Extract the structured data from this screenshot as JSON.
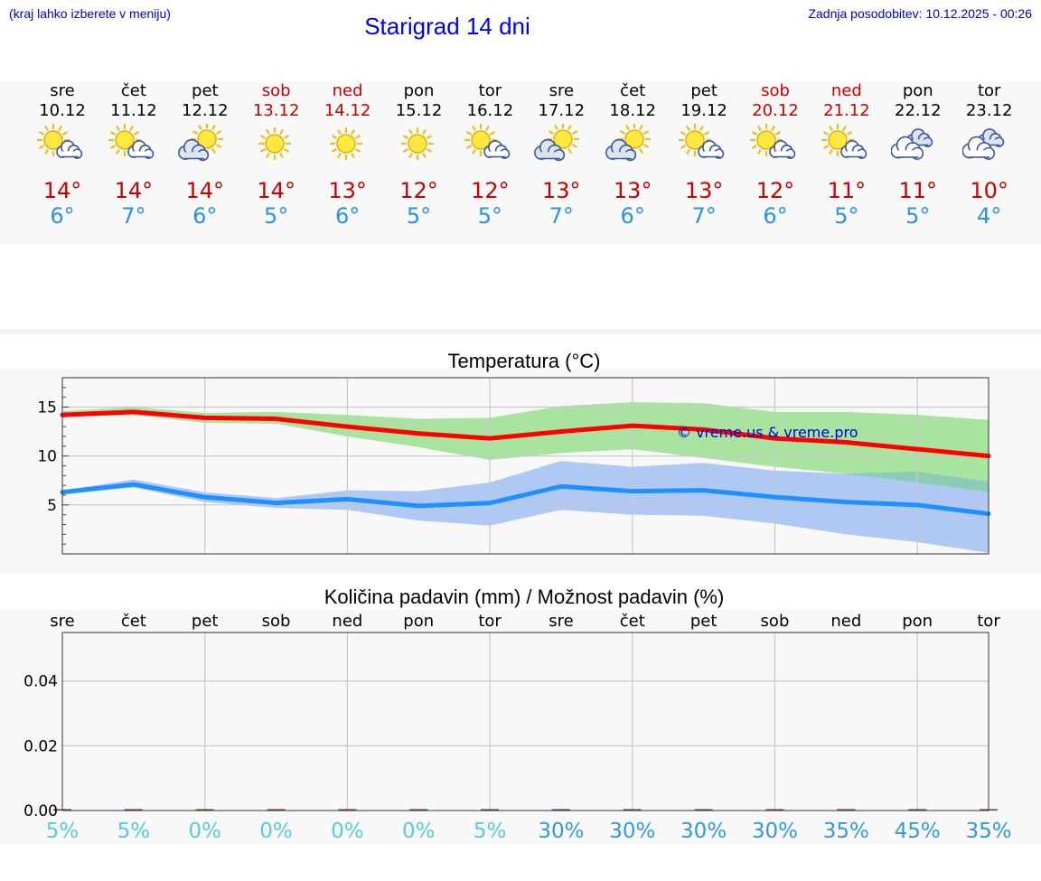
{
  "header": {
    "menu_note": "(kraj lahko izberete v meniju)",
    "title": "Starigrad 14 dni",
    "updated": "Zadnja posodobitev: 10.12.2025 - 00:26"
  },
  "days": [
    {
      "name": "sre",
      "date": "10.12",
      "weekend": false,
      "icon": "sun-small-cloud-icon",
      "max": "14°",
      "min": "6°"
    },
    {
      "name": "čet",
      "date": "11.12",
      "weekend": false,
      "icon": "sun-small-cloud-icon",
      "max": "14°",
      "min": "7°"
    },
    {
      "name": "pet",
      "date": "12.12",
      "weekend": false,
      "icon": "sun-big-cloud-icon",
      "max": "14°",
      "min": "6°"
    },
    {
      "name": "sob",
      "date": "13.12",
      "weekend": true,
      "icon": "sun-icon",
      "max": "14°",
      "min": "5°"
    },
    {
      "name": "ned",
      "date": "14.12",
      "weekend": true,
      "icon": "sun-icon",
      "max": "13°",
      "min": "6°"
    },
    {
      "name": "pon",
      "date": "15.12",
      "weekend": false,
      "icon": "sun-icon",
      "max": "12°",
      "min": "5°"
    },
    {
      "name": "tor",
      "date": "16.12",
      "weekend": false,
      "icon": "sun-small-cloud-icon",
      "max": "12°",
      "min": "5°"
    },
    {
      "name": "sre",
      "date": "17.12",
      "weekend": false,
      "icon": "sun-big-cloud-icon",
      "max": "13°",
      "min": "7°"
    },
    {
      "name": "čet",
      "date": "18.12",
      "weekend": false,
      "icon": "sun-big-cloud-icon",
      "max": "13°",
      "min": "6°"
    },
    {
      "name": "pet",
      "date": "19.12",
      "weekend": false,
      "icon": "sun-small-cloud-icon",
      "max": "13°",
      "min": "7°"
    },
    {
      "name": "sob",
      "date": "20.12",
      "weekend": true,
      "icon": "sun-small-cloud-icon",
      "max": "12°",
      "min": "6°"
    },
    {
      "name": "ned",
      "date": "21.12",
      "weekend": true,
      "icon": "sun-small-cloud-icon",
      "max": "11°",
      "min": "5°"
    },
    {
      "name": "pon",
      "date": "22.12",
      "weekend": false,
      "icon": "cloudy-icon",
      "max": "11°",
      "min": "5°"
    },
    {
      "name": "tor",
      "date": "23.12",
      "weekend": false,
      "icon": "cloudy-icon",
      "max": "10°",
      "min": "4°"
    }
  ],
  "colors": {
    "weekend_text": "#cc0000",
    "weekday_text": "#000000",
    "max_temp": "#cc0000",
    "min_temp": "#2a90ee",
    "max_line": "#ff0000",
    "max_band": "#a8e4a0",
    "min_line": "#1e90ff",
    "min_band": "#b0c8f4",
    "overlap_band": "#88ccb0",
    "watermark": "#0000cc",
    "pct_low": "#55ccdd",
    "pct_high": "#3399dd"
  },
  "chart_data": [
    {
      "type": "line",
      "title": "Temperatura (°C)",
      "xlabel": "",
      "ylabel": "",
      "ylim": [
        0,
        18
      ],
      "yticks": [
        5,
        10,
        15
      ],
      "x": [
        "10.12",
        "11.12",
        "12.12",
        "13.12",
        "14.12",
        "15.12",
        "16.12",
        "17.12",
        "18.12",
        "19.12",
        "20.12",
        "21.12",
        "22.12",
        "23.12"
      ],
      "annotation": "© vreme.us & vreme.pro",
      "series": [
        {
          "name": "max",
          "values": [
            14.2,
            14.5,
            13.9,
            13.8,
            13.0,
            12.3,
            11.8,
            12.5,
            13.1,
            12.7,
            11.8,
            11.4,
            10.7,
            10.0
          ]
        },
        {
          "name": "max_band_upper",
          "values": [
            14.6,
            15.0,
            14.4,
            14.5,
            14.2,
            13.8,
            13.9,
            15.1,
            15.5,
            15.4,
            14.5,
            14.5,
            14.2,
            13.7
          ]
        },
        {
          "name": "max_band_lower",
          "values": [
            14.0,
            14.2,
            13.4,
            13.3,
            12.0,
            10.9,
            9.6,
            10.3,
            10.7,
            9.8,
            8.9,
            8.2,
            7.3,
            6.3
          ]
        },
        {
          "name": "min",
          "values": [
            6.3,
            7.1,
            5.8,
            5.2,
            5.6,
            4.9,
            5.2,
            6.9,
            6.4,
            6.5,
            5.8,
            5.3,
            5.0,
            4.1
          ]
        },
        {
          "name": "min_band_upper",
          "values": [
            6.5,
            7.6,
            6.3,
            5.7,
            6.5,
            6.4,
            7.3,
            9.5,
            8.9,
            9.3,
            8.5,
            8.2,
            8.4,
            7.4
          ]
        },
        {
          "name": "min_band_lower",
          "values": [
            6.1,
            6.8,
            5.3,
            4.7,
            4.5,
            3.4,
            2.9,
            4.5,
            4.0,
            3.9,
            3.1,
            2.0,
            1.2,
            0.1
          ]
        }
      ]
    },
    {
      "type": "bar",
      "title": "Količina padavin (mm) / Možnost padavin (%)",
      "xlabel": "",
      "ylabel": "",
      "ylim": [
        0,
        0.055
      ],
      "yticks": [
        0.0,
        0.02,
        0.04
      ],
      "ytick_labels": [
        "0.00",
        "0.02",
        "0.04"
      ],
      "categories": [
        "sre",
        "čet",
        "pet",
        "sob",
        "ned",
        "pon",
        "tor",
        "sre",
        "čet",
        "pet",
        "sob",
        "ned",
        "pon",
        "tor"
      ],
      "values": [
        0,
        0,
        0,
        0,
        0,
        0,
        0,
        0,
        0,
        0,
        0,
        0,
        0,
        0
      ],
      "probabilities": [
        "5%",
        "5%",
        "0%",
        "0%",
        "0%",
        "0%",
        "5%",
        "30%",
        "30%",
        "30%",
        "30%",
        "35%",
        "45%",
        "35%"
      ]
    }
  ]
}
